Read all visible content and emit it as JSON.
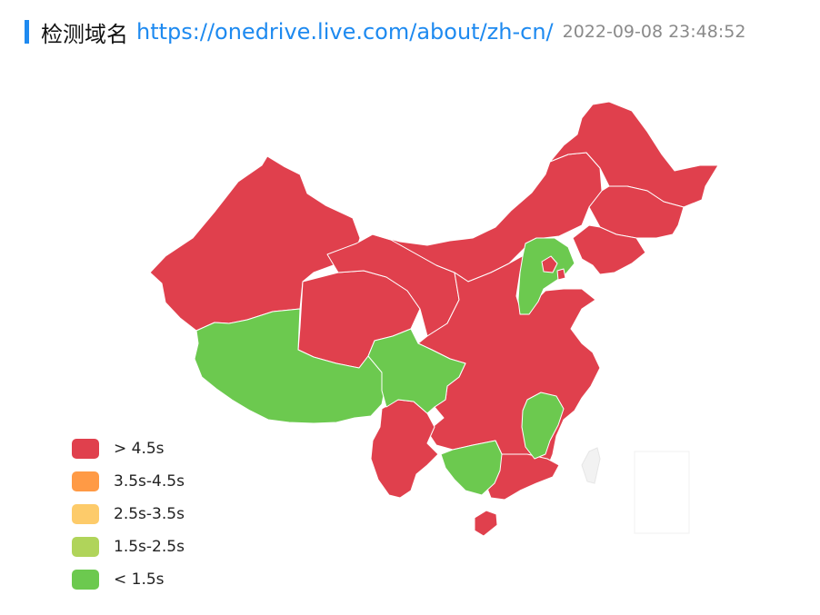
{
  "header": {
    "title": "检测域名",
    "url": "https://onedrive.live.com/about/zh-cn/",
    "timestamp": "2022-09-08 23:48:52"
  },
  "map": {
    "colors": {
      "red": "#e0404d",
      "green": "#6cc94f"
    },
    "provinces": [
      {
        "name": "xinjiang",
        "status": "> 4.5s"
      },
      {
        "name": "tibet",
        "status": "< 1.5s"
      },
      {
        "name": "qinghai",
        "status": "> 4.5s"
      },
      {
        "name": "gansu",
        "status": "> 4.5s"
      },
      {
        "name": "inner-mongolia",
        "status": "> 4.5s"
      },
      {
        "name": "heilongjiang",
        "status": "> 4.5s"
      },
      {
        "name": "jilin",
        "status": "> 4.5s"
      },
      {
        "name": "liaoning",
        "status": "> 4.5s"
      },
      {
        "name": "hebei",
        "status": "< 1.5s"
      },
      {
        "name": "beijing",
        "status": "> 4.5s"
      },
      {
        "name": "sichuan",
        "status": "< 1.5s"
      },
      {
        "name": "yunnan",
        "status": "> 4.5s"
      },
      {
        "name": "guangxi",
        "status": "< 1.5s"
      },
      {
        "name": "jiangxi",
        "status": "< 1.5s"
      },
      {
        "name": "hainan",
        "status": "> 4.5s"
      },
      {
        "name": "east-central-china",
        "status": "> 4.5s"
      }
    ]
  },
  "legend": {
    "items": [
      {
        "label": "> 4.5s",
        "color": "#e0404d"
      },
      {
        "label": "3.5s-4.5s",
        "color": "#ff9a45"
      },
      {
        "label": "2.5s-3.5s",
        "color": "#fdcb6a"
      },
      {
        "label": "1.5s-2.5s",
        "color": "#b0d45a"
      },
      {
        "label": "< 1.5s",
        "color": "#6cc94f"
      }
    ]
  }
}
